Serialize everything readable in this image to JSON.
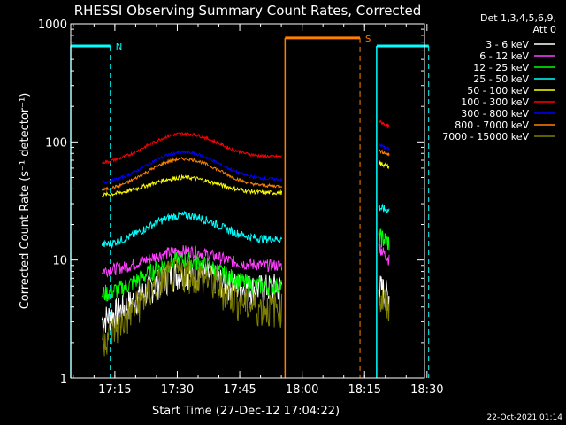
{
  "chart_data": {
    "type": "line",
    "title": "RHESSI Observing Summary Count Rates, Corrected",
    "xlabel": "Start Time (27-Dec-12 17:04:22)",
    "ylabel": "Corrected Count Rate (s⁻¹ detector⁻¹)",
    "yscale": "log",
    "ylim": [
      1,
      1000
    ],
    "xlim_minutes": [
      0,
      85
    ],
    "x_ticks": [
      {
        "m": 10.6,
        "label": "17:15"
      },
      {
        "m": 25.6,
        "label": "17:30"
      },
      {
        "m": 40.6,
        "label": "17:45"
      },
      {
        "m": 55.6,
        "label": "18:00"
      },
      {
        "m": 70.6,
        "label": "18:15"
      },
      {
        "m": 85.6,
        "label": "18:30"
      }
    ],
    "y_ticks": [
      {
        "v": 1,
        "label": "1"
      },
      {
        "v": 10,
        "label": "10"
      },
      {
        "v": 100,
        "label": "100"
      },
      {
        "v": 1000,
        "label": "1000"
      }
    ],
    "legend_header": [
      "Det 1,3,4,5,6,9,",
      "Att 0"
    ],
    "legend_position": "right",
    "series": [
      {
        "name": "3 - 6 keV",
        "color": "#ffffff",
        "day": {
          "start": 3,
          "peak": 8,
          "end": 6
        },
        "tail": {
          "start": 6,
          "end": 5
        },
        "noise": 0.3
      },
      {
        "name": "6 - 12 keV",
        "color": "#ff40ff",
        "day": {
          "start": 8,
          "peak": 12,
          "end": 9
        },
        "tail": {
          "start": 13,
          "end": 10
        },
        "noise": 0.12
      },
      {
        "name": "12 - 25 keV",
        "color": "#00ff00",
        "day": {
          "start": 5,
          "peak": 10,
          "end": 6
        },
        "tail": {
          "start": 16,
          "end": 14
        },
        "noise": 0.18
      },
      {
        "name": "25 - 50 keV",
        "color": "#00ffff",
        "day": {
          "start": 13,
          "peak": 24,
          "end": 15
        },
        "tail": {
          "start": 28,
          "end": 26
        },
        "noise": 0.08
      },
      {
        "name": "50 - 100 keV",
        "color": "#ffff00",
        "day": {
          "start": 35,
          "peak": 50,
          "end": 37
        },
        "tail": {
          "start": 66,
          "end": 62
        },
        "noise": 0.04
      },
      {
        "name": "100 - 300 keV",
        "color": "#ff0000",
        "day": {
          "start": 65,
          "peak": 118,
          "end": 75
        },
        "tail": {
          "start": 150,
          "end": 135
        },
        "noise": 0.03
      },
      {
        "name": "300 - 800 keV",
        "color": "#0000ff",
        "day": {
          "start": 44,
          "peak": 82,
          "end": 48
        },
        "tail": {
          "start": 95,
          "end": 87
        },
        "noise": 0.03
      },
      {
        "name": "800 - 7000 keV",
        "color": "#ff8000",
        "day": {
          "start": 38,
          "peak": 72,
          "end": 42
        },
        "tail": {
          "start": 85,
          "end": 78
        },
        "noise": 0.03
      },
      {
        "name": "7000 - 15000 keV",
        "color": "#808000",
        "day": {
          "start": 2,
          "peak": 8,
          "end": 4
        },
        "tail": {
          "start": 5,
          "end": 4
        },
        "noise": 0.35
      }
    ],
    "segments_minutes": {
      "day": [
        7.5,
        50.8
      ],
      "tail": [
        74,
        76.5
      ]
    },
    "night_markers": [
      {
        "label": "N",
        "color": "#00ffff",
        "start": -4,
        "end": 9.5,
        "level": 650
      },
      {
        "label": "",
        "color": "#00ffff",
        "start": 73.5,
        "end": 86,
        "level": 650
      }
    ],
    "saa_markers": [
      {
        "label": "S",
        "color": "#ff8000",
        "start": 51.5,
        "end": 69.5,
        "level": 760
      }
    ]
  },
  "timestamp": "22-Oct-2021 01:14"
}
